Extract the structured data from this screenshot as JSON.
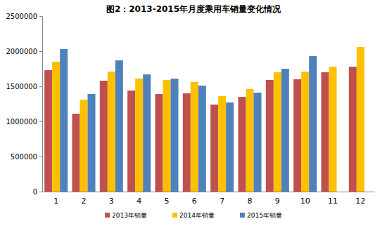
{
  "chart_data": {
    "type": "bar",
    "title": "图2：2013-2015年月度乘用车销量变化情况",
    "categories": [
      "1",
      "2",
      "3",
      "4",
      "5",
      "6",
      "7",
      "8",
      "9",
      "10",
      "11",
      "12"
    ],
    "series": [
      {
        "name": "2013年销量",
        "color": "#c0504d",
        "values": [
          1730000,
          1110000,
          1580000,
          1440000,
          1390000,
          1400000,
          1240000,
          1350000,
          1590000,
          1600000,
          1700000,
          1780000
        ]
      },
      {
        "name": "2014年销量",
        "color": "#ffc000",
        "values": [
          1850000,
          1310000,
          1710000,
          1610000,
          1590000,
          1560000,
          1360000,
          1460000,
          1700000,
          1710000,
          1780000,
          2060000
        ]
      },
      {
        "name": "2015年销量",
        "color": "#4f81bd",
        "values": [
          2030000,
          1390000,
          1870000,
          1670000,
          1610000,
          1510000,
          1270000,
          1410000,
          1750000,
          1930000,
          null,
          null
        ]
      }
    ],
    "ylim": [
      0,
      2500000
    ],
    "yticks": [
      0,
      500000,
      1000000,
      1500000,
      2000000,
      2500000
    ],
    "grid": false,
    "legend": "bottom"
  }
}
